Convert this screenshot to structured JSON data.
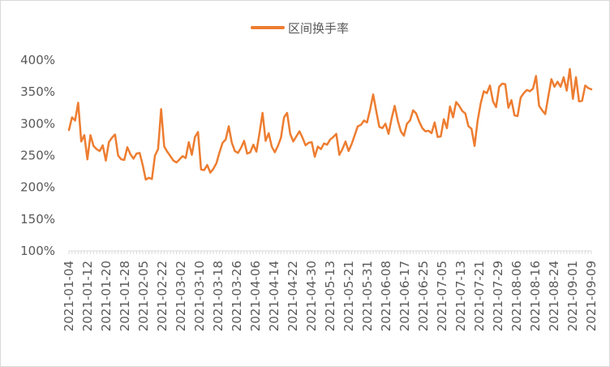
{
  "chart_data": {
    "type": "line",
    "legend_position": "top-center",
    "grid": false,
    "y_tick_format": "percent",
    "ylim": [
      1.0,
      4.0
    ],
    "y_ticks": [
      1.0,
      1.5,
      2.0,
      2.5,
      3.0,
      3.5,
      4.0
    ],
    "y_tick_labels": [
      "100%",
      "150%",
      "200%",
      "250%",
      "300%",
      "350%",
      "400%"
    ],
    "x_ticks": [
      "2021-01-04",
      "2021-01-12",
      "2021-01-20",
      "2021-01-28",
      "2021-02-05",
      "2021-02-22",
      "2021-03-02",
      "2021-03-10",
      "2021-03-18",
      "2021-03-26",
      "2021-04-06",
      "2021-04-14",
      "2021-04-22",
      "2021-04-30",
      "2021-05-13",
      "2021-05-21",
      "2021-05-31",
      "2021-06-08",
      "2021-06-17",
      "2021-06-25",
      "2021-07-05",
      "2021-07-13",
      "2021-07-21",
      "2021-07-29",
      "2021-08-06",
      "2021-08-16",
      "2021-08-24",
      "2021-09-01",
      "2021-09-09"
    ],
    "series": [
      {
        "name": "区间换手率",
        "color": "#ED7D31",
        "values": [
          2.9,
          3.1,
          3.05,
          3.33,
          2.72,
          2.82,
          2.44,
          2.82,
          2.65,
          2.6,
          2.57,
          2.66,
          2.42,
          2.71,
          2.78,
          2.83,
          2.5,
          2.44,
          2.43,
          2.63,
          2.52,
          2.45,
          2.53,
          2.54,
          2.35,
          2.12,
          2.15,
          2.13,
          2.5,
          2.6,
          3.23,
          2.64,
          2.56,
          2.49,
          2.42,
          2.39,
          2.44,
          2.49,
          2.46,
          2.71,
          2.51,
          2.79,
          2.87,
          2.28,
          2.27,
          2.35,
          2.23,
          2.29,
          2.38,
          2.55,
          2.7,
          2.75,
          2.96,
          2.7,
          2.57,
          2.54,
          2.62,
          2.73,
          2.53,
          2.55,
          2.67,
          2.56,
          2.85,
          3.17,
          2.73,
          2.85,
          2.64,
          2.55,
          2.65,
          2.78,
          3.1,
          3.17,
          2.84,
          2.72,
          2.8,
          2.88,
          2.78,
          2.66,
          2.7,
          2.71,
          2.48,
          2.64,
          2.6,
          2.69,
          2.67,
          2.75,
          2.79,
          2.84,
          2.51,
          2.6,
          2.72,
          2.57,
          2.68,
          2.82,
          2.96,
          2.98,
          3.05,
          3.02,
          3.22,
          3.46,
          3.2,
          2.95,
          2.93,
          3.0,
          2.84,
          3.08,
          3.28,
          3.05,
          2.88,
          2.81,
          3.0,
          3.05,
          3.21,
          3.16,
          3.03,
          2.93,
          2.88,
          2.89,
          2.85,
          3.02,
          2.79,
          2.8,
          3.07,
          2.93,
          3.27,
          3.1,
          3.34,
          3.28,
          3.2,
          3.16,
          2.96,
          2.92,
          2.65,
          3.05,
          3.32,
          3.51,
          3.48,
          3.6,
          3.35,
          3.26,
          3.58,
          3.63,
          3.62,
          3.25,
          3.37,
          3.13,
          3.12,
          3.41,
          3.48,
          3.53,
          3.51,
          3.55,
          3.75,
          3.28,
          3.21,
          3.15,
          3.43,
          3.7,
          3.58,
          3.66,
          3.58,
          3.73,
          3.52,
          3.86,
          3.39,
          3.73,
          3.35,
          3.36,
          3.6,
          3.56,
          3.54
        ]
      }
    ]
  }
}
